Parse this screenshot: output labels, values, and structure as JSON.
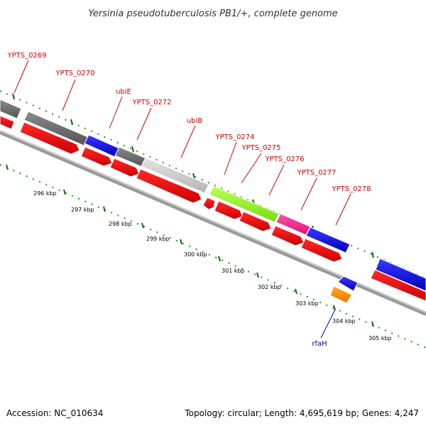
{
  "title": "Yersinia pseudotuberculosis PB1/+, complete genome",
  "footer": {
    "accession": "Accession: NC_010634",
    "topology": "Topology: circular; Length: 4,695,619 bp; Genes: 4,247"
  },
  "colors": {
    "cds": "#ff0000",
    "gene_dark": "#666666",
    "gene_light": "#cccccc",
    "gene_blue": "#0000ee",
    "gene_green": "#99ff33",
    "gene_pink": "#ff3399",
    "gene_orange": "#ff9900",
    "tick": "#006600",
    "backbone": "#888888"
  },
  "gene_labels": [
    {
      "id": "YPTS_0269",
      "text": "YPTS_0269",
      "color": "red"
    },
    {
      "id": "YPTS_0270",
      "text": "YPTS_0270",
      "color": "red"
    },
    {
      "id": "ubiE",
      "text": "ubiE",
      "color": "red"
    },
    {
      "id": "YPTS_0272",
      "text": "YPTS_0272",
      "color": "red"
    },
    {
      "id": "ubiB",
      "text": "ubiB",
      "color": "red"
    },
    {
      "id": "YPTS_0274",
      "text": "YPTS_0274",
      "color": "red"
    },
    {
      "id": "YPTS_0275",
      "text": "YPTS_0275",
      "color": "red"
    },
    {
      "id": "YPTS_0276",
      "text": "YPTS_0276",
      "color": "red"
    },
    {
      "id": "YPTS_0277",
      "text": "YPTS_0277",
      "color": "red"
    },
    {
      "id": "YPTS_0278",
      "text": "YPTS_0278",
      "color": "red"
    },
    {
      "id": "rfaH",
      "text": "rfaH",
      "color": "blue"
    }
  ],
  "scale_labels": [
    "296 kbp",
    "297 kbp",
    "298 kbp",
    "299 kbp",
    "300 kbp",
    "301 kbp",
    "302 kbp",
    "303 kbp",
    "304 kbp",
    "305 kbp"
  ]
}
